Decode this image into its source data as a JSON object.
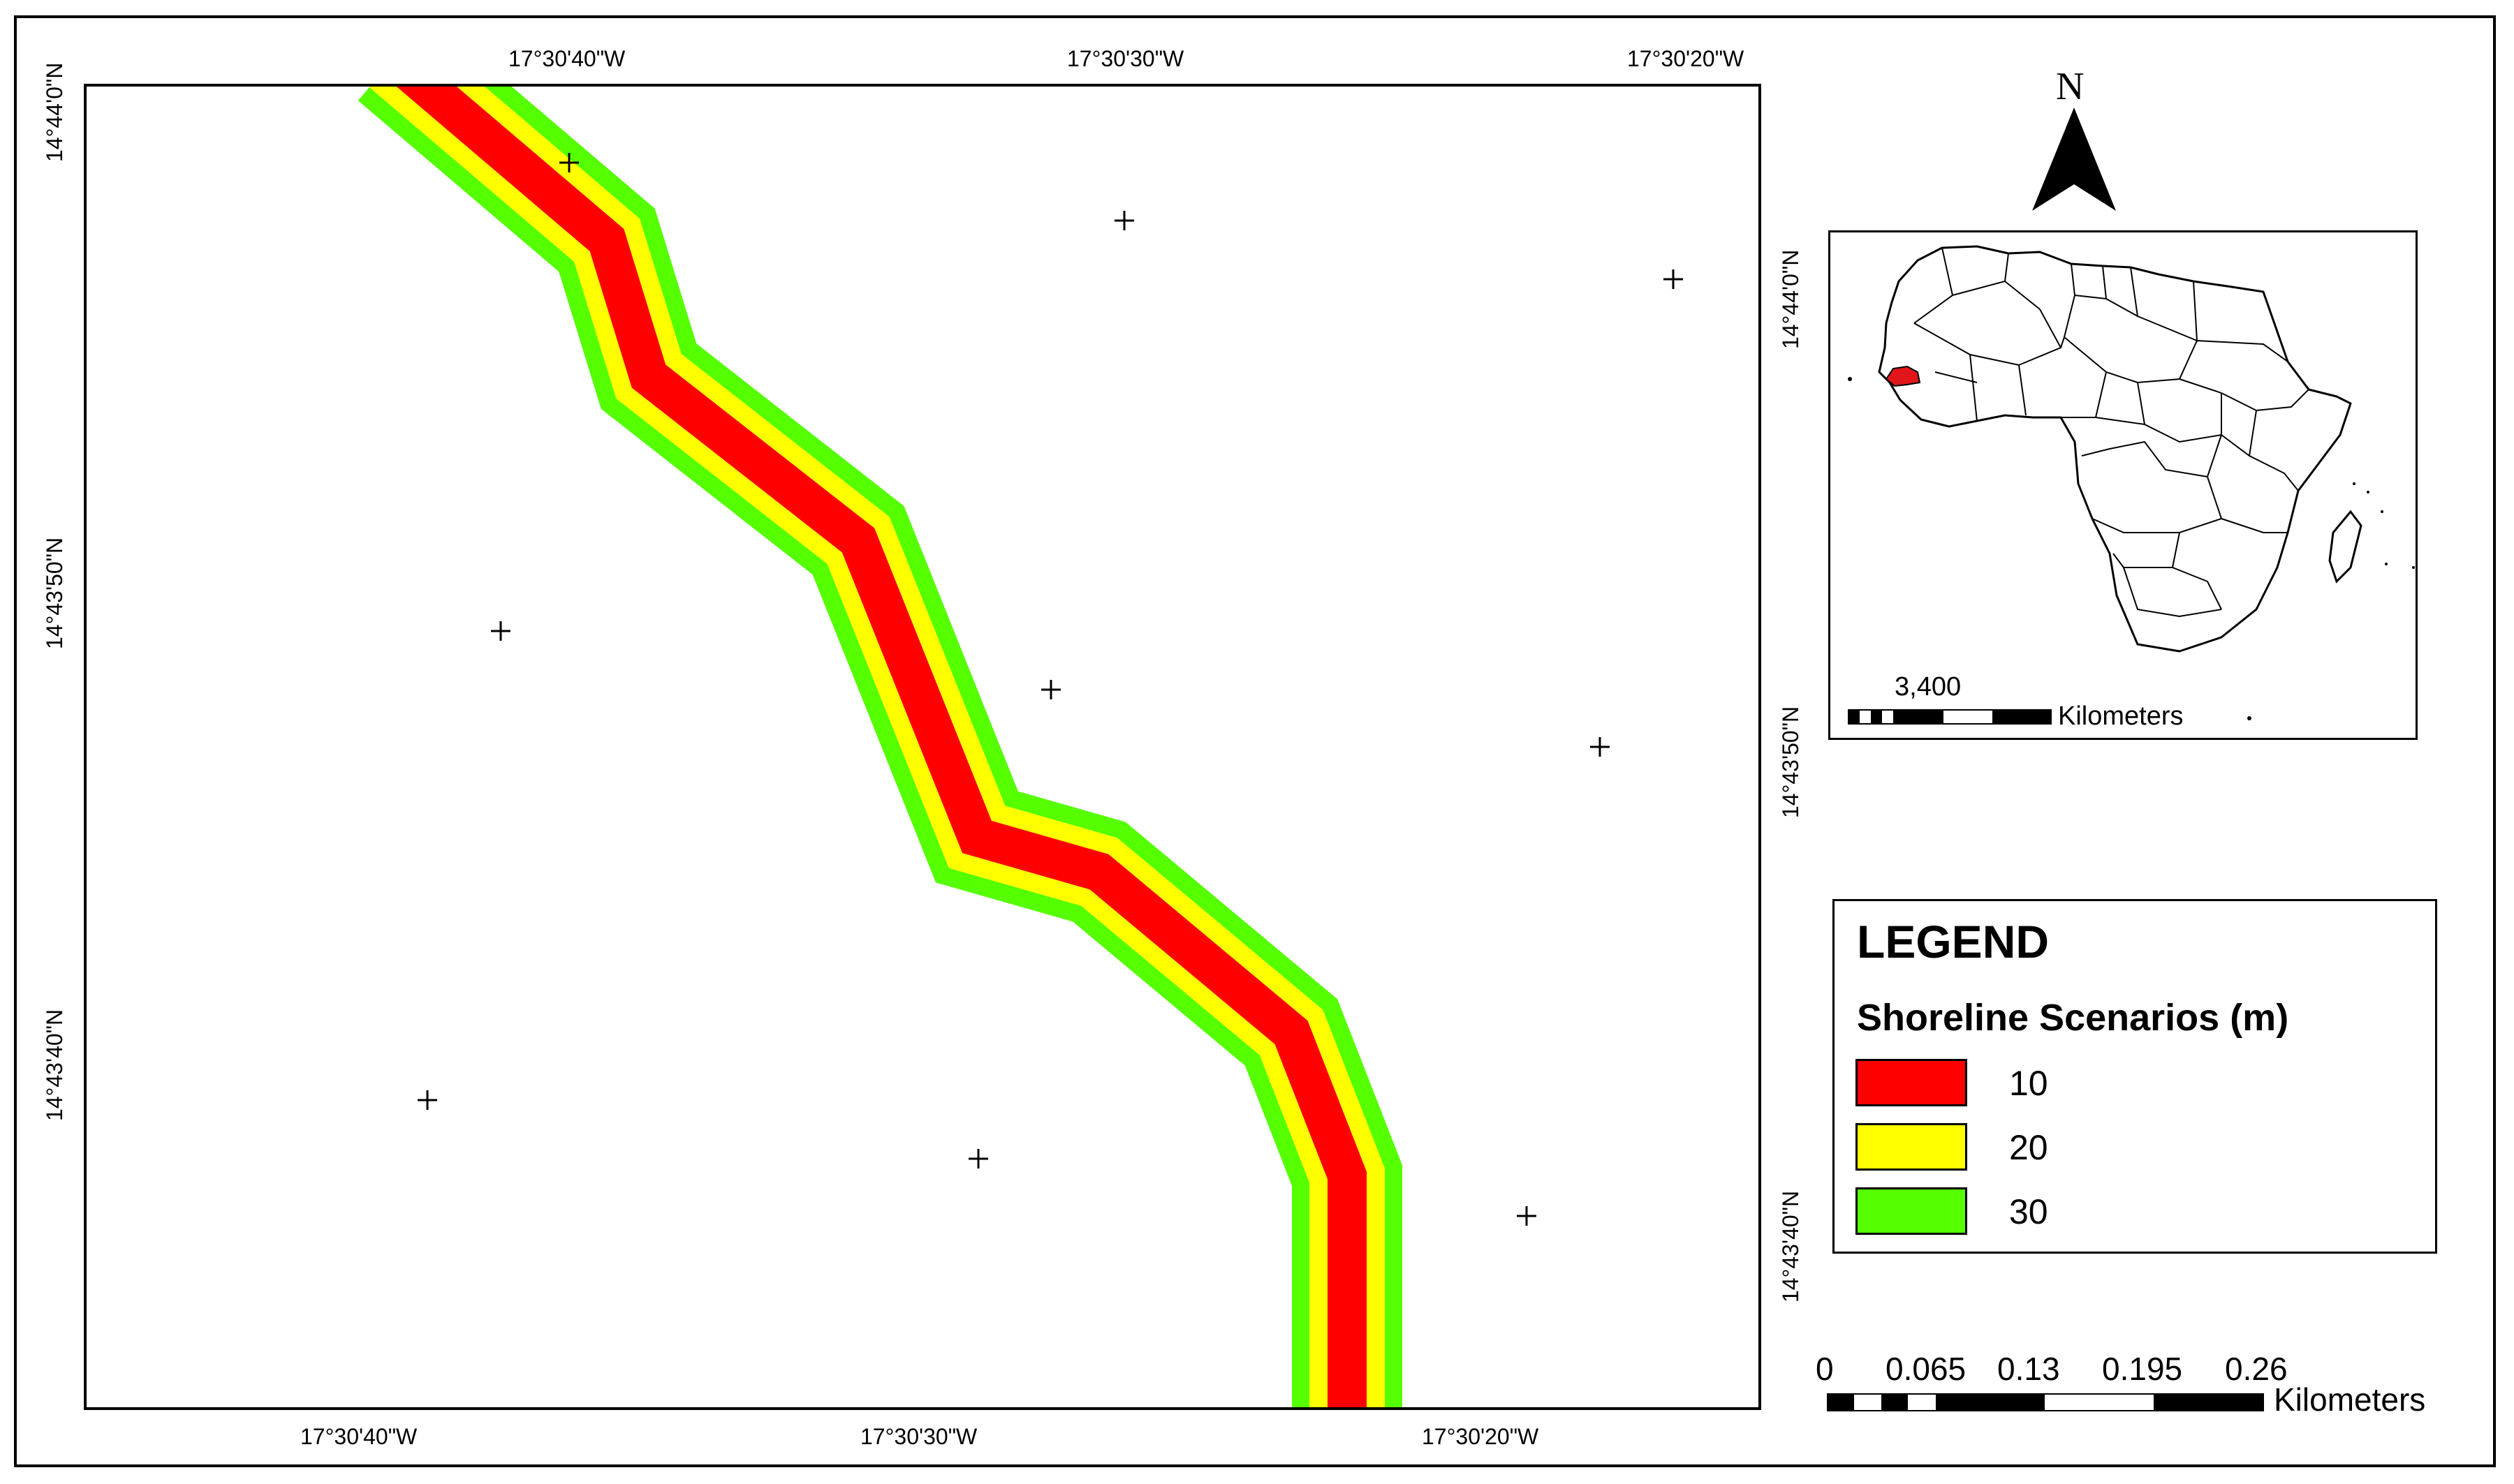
{
  "map": {
    "top_lon_labels": [
      "17°30'40\"W",
      "17°30'30\"W",
      "17°30'20\"W"
    ],
    "bottom_lon_labels": [
      "17°30'40\"W",
      "17°30'30\"W",
      "17°30'20\"W"
    ],
    "left_lat_labels": [
      "14°44'0\"N",
      "14°43'50\"N",
      "14°43'40\"N"
    ],
    "right_lat_labels": [
      "14°44'0\"N",
      "14°43'50\"N",
      "14°43'40\"N"
    ]
  },
  "inset": {
    "scale_value": "3,400",
    "scale_unit": "Kilometers",
    "highlight_color": "#e0161b"
  },
  "north_arrow": {
    "label": "N"
  },
  "legend": {
    "title": "LEGEND",
    "subtitle": "Shoreline Scenarios (m)",
    "items": [
      {
        "label": "10",
        "color": "#ff0000"
      },
      {
        "label": "20",
        "color": "#ffff00"
      },
      {
        "label": "30",
        "color": "#55ff00"
      }
    ]
  },
  "scale_bar": {
    "ticks": [
      "0",
      "0.065",
      "0.13",
      "0.195",
      "0.26"
    ],
    "unit": "Kilometers"
  }
}
